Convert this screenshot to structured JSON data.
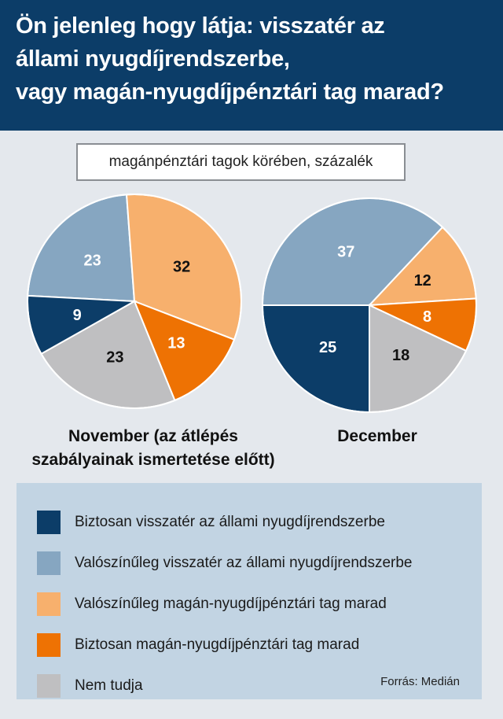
{
  "header": {
    "title_lines": [
      "Ön jelenleg hogy látja: visszatér az",
      "állami nyugdíjrendszerbe,",
      "vagy magán-nyugdíjpénztári tag marad?"
    ]
  },
  "subtitle": "magánpénztári tagok körében, százalék",
  "legend": {
    "items": [
      {
        "label": "Biztosan visszatér az állami nyugdíjrendszerbe",
        "color": "#0c3d68"
      },
      {
        "label": "Valószínűleg visszatér az állami nyugdíjrendszerbe",
        "color": "#86a6c1"
      },
      {
        "label": "Valószínűleg magán-nyugdíjpénztári tag marad",
        "color": "#f7b06d"
      },
      {
        "label": "Biztosan magán-nyugdíjpénztári tag marad",
        "color": "#ee7203"
      },
      {
        "label": "Nem tudja",
        "color": "#bfbfc1"
      }
    ],
    "source": "Forrás: Medián"
  },
  "chart_data": [
    {
      "type": "pie",
      "title": "November (az átlépés szabályainak ismertetése előtt)",
      "title_lines": [
        "November (az átlépés",
        "szabályainak ismertetése előtt)"
      ],
      "categories": [
        "Biztosan visszatér az állami nyugdíjrendszerbe",
        "Valószínűleg visszatér az állami nyugdíjrendszerbe",
        "Valószínűleg magán-nyugdíjpénztári tag marad",
        "Biztosan magán-nyugdíjpénztári tag marad",
        "Nem tudja"
      ],
      "values": [
        9,
        23,
        32,
        13,
        23
      ],
      "colors": [
        "#0c3d68",
        "#86a6c1",
        "#f7b06d",
        "#ee7203",
        "#bfbfc1"
      ],
      "label_colors": [
        "#ffffff",
        "#ffffff",
        "#111111",
        "#ffffff",
        "#111111"
      ]
    },
    {
      "type": "pie",
      "title": "December",
      "title_lines": [
        "December"
      ],
      "categories": [
        "Biztosan visszatér az állami nyugdíjrendszerbe",
        "Valószínűleg visszatér az állami nyugdíjrendszerbe",
        "Valószínűleg magán-nyugdíjpénztári tag marad",
        "Biztosan magán-nyugdíjpénztári tag marad",
        "Nem tudja"
      ],
      "values": [
        25,
        37,
        12,
        8,
        18
      ],
      "colors": [
        "#0c3d68",
        "#86a6c1",
        "#f7b06d",
        "#ee7203",
        "#bfbfc1"
      ],
      "label_colors": [
        "#ffffff",
        "#ffffff",
        "#111111",
        "#ffffff",
        "#111111"
      ]
    }
  ]
}
